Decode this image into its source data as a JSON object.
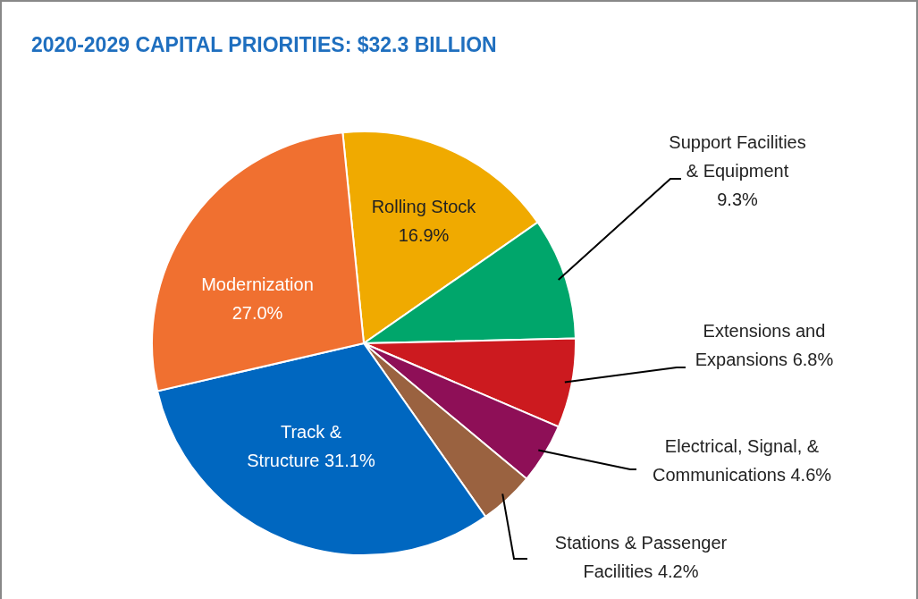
{
  "chart_data": {
    "type": "pie",
    "title": "2020-2029  CAPITAL PRIORITIES: $32.3 BILLION",
    "categories": [
      "Rolling Stock",
      "Support Facilities & Equipment",
      "Extensions and Expansions",
      "Electrical, Signal, & Communications",
      "Stations & Passenger Facilities",
      "Track & Structure",
      "Modernization"
    ],
    "values": [
      16.9,
      9.3,
      6.8,
      4.6,
      4.2,
      31.1,
      27.0
    ],
    "colors": [
      "#f0aa00",
      "#00a66b",
      "#cc1a1f",
      "#8e0f57",
      "#9a6240",
      "#0067c0",
      "#f07030"
    ],
    "value_labels": [
      "16.9%",
      "9.3%",
      "6.8%",
      "4.6%",
      "4.2%",
      "31.1%",
      "27.0%"
    ]
  }
}
